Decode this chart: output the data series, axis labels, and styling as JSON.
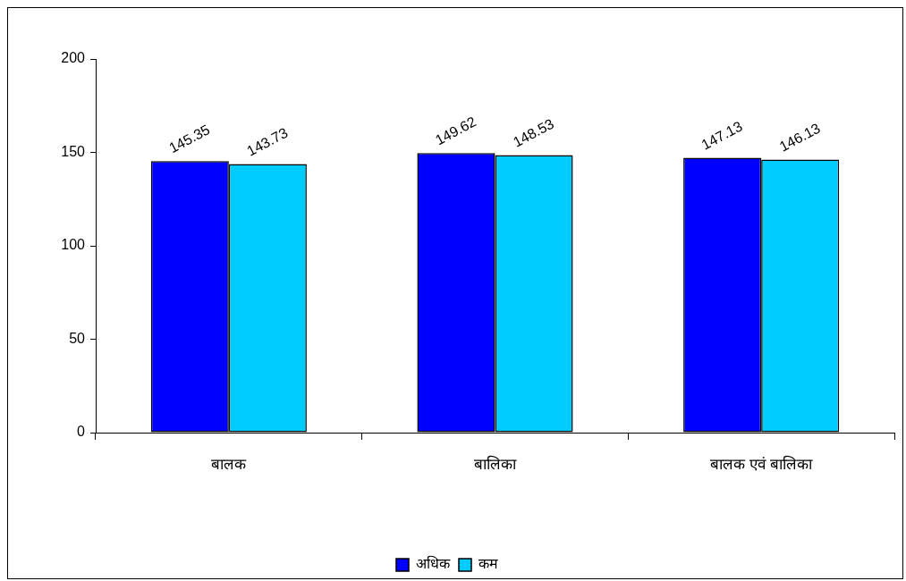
{
  "chart_data": {
    "type": "bar",
    "categories": [
      "बालक",
      "बालिका",
      "बालक एवं बालिका"
    ],
    "series": [
      {
        "name": "अधिक",
        "color": "#0000ff",
        "values": [
          145.35,
          149.62,
          147.13
        ]
      },
      {
        "name": "कम",
        "color": "#00ccff",
        "values": [
          143.73,
          148.53,
          146.13
        ]
      }
    ],
    "ylim": [
      0,
      200
    ],
    "yticks": [
      0,
      50,
      100,
      150,
      200
    ],
    "grid": false,
    "legend": "bottom",
    "data_labels": true
  }
}
